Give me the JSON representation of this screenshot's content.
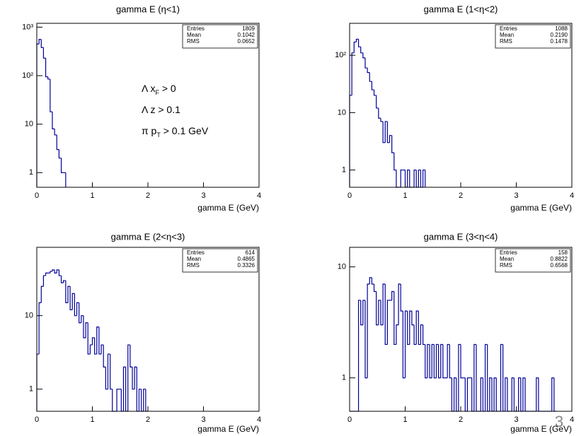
{
  "page_number": "3",
  "chart_data": [
    {
      "type": "histogram",
      "title": "gamma E (η<1)",
      "x_label": "gamma E (GeV)",
      "color": "#000099",
      "log_y": true,
      "xlim": [
        0,
        4
      ],
      "xticks": [
        0,
        1,
        2,
        3,
        4
      ],
      "ylim": [
        0.5,
        1200
      ],
      "yticks": [
        1,
        10,
        {
          "value": 100,
          "label": "10²"
        },
        {
          "value": 1000,
          "label": "10³"
        }
      ],
      "bins": [
        0,
        0.04,
        0.08,
        0.12,
        0.16,
        0.2,
        0.24,
        0.28,
        0.32,
        0.36,
        0.4,
        0.44,
        0.48,
        0.52
      ],
      "counts": [
        450,
        560,
        380,
        230,
        95,
        85,
        18,
        8,
        6,
        3,
        2,
        1,
        1
      ],
      "stats": [
        {
          "label": "Entries",
          "value": "1809"
        },
        {
          "label": "Mean",
          "value": "0.1042"
        },
        {
          "label": "RMS",
          "value": "0.0652"
        }
      ],
      "annotations": [
        {
          "text": "Λ x",
          "sub": "F",
          "after": " > 0"
        },
        {
          "text": "Λ z > 0.1"
        },
        {
          "text": "π p",
          "sub": "T",
          "after": " > 0.1 GeV"
        }
      ]
    },
    {
      "type": "histogram",
      "title": "gamma E (1<η<2)",
      "x_label": "gamma E (GeV)",
      "color": "#000099",
      "log_y": true,
      "xlim": [
        0,
        4
      ],
      "xticks": [
        0,
        1,
        2,
        3,
        4
      ],
      "ylim": [
        0.5,
        360
      ],
      "yticks": [
        1,
        10,
        {
          "value": 100,
          "label": "10²"
        }
      ],
      "bins": [
        0,
        0.04,
        0.08,
        0.12,
        0.16,
        0.2,
        0.24,
        0.28,
        0.32,
        0.36,
        0.4,
        0.44,
        0.48,
        0.52,
        0.56,
        0.6,
        0.64,
        0.68,
        0.72,
        0.76,
        0.8,
        0.84,
        0.88,
        0.92,
        0.96,
        1,
        1.04,
        1.08,
        1.12,
        1.16,
        1.2,
        1.24,
        1.28,
        1.32,
        1.36
      ],
      "counts": [
        20,
        110,
        170,
        190,
        140,
        110,
        90,
        60,
        50,
        35,
        25,
        20,
        12,
        8,
        7,
        3,
        7,
        3,
        4,
        2,
        1,
        0,
        0,
        1,
        1,
        0,
        1,
        0,
        0,
        1,
        0,
        1,
        0,
        1
      ],
      "stats": [
        {
          "label": "Entries",
          "value": "1088"
        },
        {
          "label": "Mean",
          "value": "0.2190"
        },
        {
          "label": "RMS",
          "value": "0.1478"
        }
      ]
    },
    {
      "type": "histogram",
      "title": "gamma E (2<η<3)",
      "x_label": "gamma E (GeV)",
      "color": "#000099",
      "log_y": true,
      "xlim": [
        0,
        4
      ],
      "xticks": [
        0,
        1,
        2,
        3,
        4
      ],
      "ylim": [
        0.5,
        85
      ],
      "yticks": [
        1,
        10
      ],
      "bins": [
        0,
        0.04,
        0.08,
        0.12,
        0.16,
        0.2,
        0.24,
        0.28,
        0.32,
        0.36,
        0.4,
        0.44,
        0.48,
        0.52,
        0.56,
        0.6,
        0.64,
        0.68,
        0.72,
        0.76,
        0.8,
        0.84,
        0.88,
        0.92,
        0.96,
        1,
        1.04,
        1.08,
        1.12,
        1.16,
        1.2,
        1.24,
        1.28,
        1.32,
        1.36,
        1.4,
        1.44,
        1.48,
        1.52,
        1.56,
        1.6,
        1.64,
        1.68,
        1.72,
        1.76,
        1.8,
        1.84,
        1.88,
        1.92,
        1.96,
        2
      ],
      "counts": [
        3,
        15,
        25,
        35,
        38,
        38,
        40,
        42,
        38,
        42,
        35,
        28,
        30,
        15,
        25,
        12,
        20,
        10,
        15,
        8,
        10,
        5,
        8,
        3,
        4,
        5,
        3,
        7,
        3,
        4,
        2,
        1,
        3,
        1,
        0,
        0,
        1,
        1,
        0,
        2,
        0,
        4,
        2,
        1,
        2,
        0,
        1,
        0,
        1,
        0
      ],
      "stats": [
        {
          "label": "Entries",
          "value": "614"
        },
        {
          "label": "Mean",
          "value": "0.4865"
        },
        {
          "label": "RMS",
          "value": "0.3326"
        }
      ]
    },
    {
      "type": "histogram",
      "title": "gamma E (3<η<4)",
      "x_label": "gamma E (GeV)",
      "color": "#000099",
      "log_y": true,
      "xlim": [
        0,
        4
      ],
      "xticks": [
        0,
        1,
        2,
        3,
        4
      ],
      "ylim": [
        0.5,
        15
      ],
      "yticks": [
        1,
        10
      ],
      "bins": [
        0,
        0.04,
        0.08,
        0.12,
        0.16,
        0.2,
        0.24,
        0.28,
        0.32,
        0.36,
        0.4,
        0.44,
        0.48,
        0.52,
        0.56,
        0.6,
        0.64,
        0.68,
        0.72,
        0.76,
        0.8,
        0.84,
        0.88,
        0.92,
        0.96,
        1,
        1.04,
        1.08,
        1.12,
        1.16,
        1.2,
        1.24,
        1.28,
        1.32,
        1.36,
        1.4,
        1.44,
        1.48,
        1.52,
        1.56,
        1.6,
        1.64,
        1.68,
        1.72,
        1.76,
        1.8,
        1.84,
        1.88,
        1.92,
        1.96,
        2,
        2.04,
        2.08,
        2.12,
        2.16,
        2.2,
        2.24,
        2.28,
        2.32,
        2.36,
        2.4,
        2.44,
        2.48,
        2.52,
        2.56,
        2.6,
        2.64,
        2.68,
        2.72,
        2.76,
        2.8,
        2.84,
        2.88,
        2.92,
        2.96,
        3,
        3.04,
        3.08,
        3.12,
        3.16,
        3.2,
        3.24,
        3.28,
        3.32,
        3.36,
        3.4,
        3.44,
        3.48,
        3.52,
        3.56,
        3.6,
        3.64,
        3.68,
        3.72
      ],
      "counts": [
        0,
        0,
        0,
        0,
        5,
        3,
        5,
        1,
        7,
        8,
        7,
        6,
        3,
        5,
        3,
        7,
        2,
        5,
        5,
        6,
        2,
        3,
        7,
        4,
        1,
        4,
        2,
        4,
        3,
        2,
        4,
        2,
        3,
        2,
        1,
        2,
        1,
        2,
        1,
        2,
        1,
        2,
        1,
        1,
        2,
        1,
        0,
        1,
        0,
        2,
        1,
        1,
        0,
        1,
        1,
        0,
        2,
        0,
        0,
        1,
        0,
        2,
        0,
        1,
        0,
        1,
        0,
        0,
        2,
        0,
        1,
        0,
        0,
        1,
        0,
        0,
        1,
        0,
        1,
        0,
        0,
        0,
        0,
        0,
        1,
        0,
        0,
        0,
        0,
        0,
        0,
        1,
        0
      ],
      "stats": [
        {
          "label": "Entries",
          "value": "158"
        },
        {
          "label": "Mean",
          "value": "0.8822"
        },
        {
          "label": "RMS",
          "value": "0.6568"
        }
      ]
    }
  ]
}
